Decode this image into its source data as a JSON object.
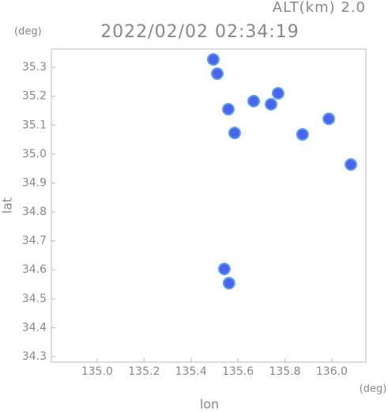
{
  "chart_data": {
    "type": "scatter",
    "title": "2022/02/02 02:34:19",
    "subtitle": "ALT(km) 2.0",
    "x_label": "lon",
    "y_label": "lat",
    "x_unit": "(deg)",
    "y_unit": "(deg)",
    "color": "#4a63f0",
    "x": [
      135.495,
      135.512,
      135.667,
      135.741,
      135.771,
      135.875,
      135.987,
      136.081,
      135.542,
      135.559,
      135.586,
      135.562
    ],
    "y": [
      35.327,
      35.278,
      35.183,
      35.172,
      35.21,
      35.068,
      35.122,
      34.964,
      34.603,
      35.155,
      35.073,
      34.554
    ],
    "xlim": [
      134.805,
      136.145
    ],
    "ylim": [
      34.281,
      35.363
    ],
    "xticks": [
      {
        "value": 135,
        "label": "135.0"
      },
      135.2,
      135.4,
      135.6,
      135.8,
      {
        "value": 136,
        "label": "136.0"
      }
    ],
    "yticks": [
      34.3,
      34.4,
      34.5,
      34.6,
      34.7,
      34.8,
      34.9,
      {
        "value": 35,
        "label": "35.0"
      },
      35.1,
      35.2,
      35.3
    ],
    "grid": false
  }
}
